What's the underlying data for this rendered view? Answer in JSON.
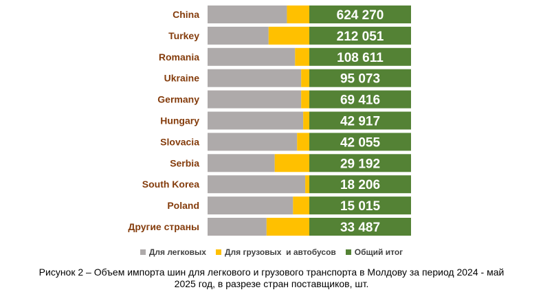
{
  "chart_data": {
    "type": "bar",
    "orientation": "horizontal",
    "stacked": "100%",
    "categories": [
      "China",
      "Turkey",
      "Romania",
      "Ukraine",
      "Germany",
      "Hungary",
      "Slovacia",
      "Serbia",
      "South Korea",
      "Poland",
      "Другие страны"
    ],
    "series": [
      {
        "name": "Для легковых",
        "color": "#AEAAAA",
        "share": [
          0.39,
          0.3,
          0.43,
          0.46,
          0.46,
          0.47,
          0.44,
          0.33,
          0.48,
          0.42,
          0.29
        ]
      },
      {
        "name": "Для грузовых  и автобусов",
        "color": "#FFC000",
        "share": [
          0.11,
          0.2,
          0.07,
          0.04,
          0.04,
          0.03,
          0.06,
          0.17,
          0.02,
          0.08,
          0.21
        ]
      },
      {
        "name": "Общий итог",
        "color": "#548235",
        "share": [
          0.5,
          0.5,
          0.5,
          0.5,
          0.5,
          0.5,
          0.5,
          0.5,
          0.5,
          0.5,
          0.5
        ]
      }
    ],
    "totals": [
      624270,
      212051,
      108611,
      95073,
      69416,
      42917,
      42055,
      29192,
      18206,
      15015,
      33487
    ],
    "total_labels": [
      "624 270",
      "212 051",
      "108 611",
      "95 073",
      "69 416",
      "42 917",
      "42 055",
      "29 192",
      "18 206",
      "15 015",
      "33 487"
    ],
    "legend_position": "bottom",
    "category_label_color": "#843C0C",
    "grid": false
  },
  "legend": {
    "items": [
      {
        "label": "Для легковых",
        "color": "#AEAAAA"
      },
      {
        "label": "Для грузовых  и автобусов",
        "color": "#FFC000"
      },
      {
        "label": "Общий итог",
        "color": "#548235"
      }
    ]
  },
  "caption": {
    "line1": "Рисунок 2 – Объем импорта шин для легкового и грузового транспорта в Молдову за период 2024 - май",
    "line2": "2025 год, в разрезе стран поставщиков, шт."
  }
}
